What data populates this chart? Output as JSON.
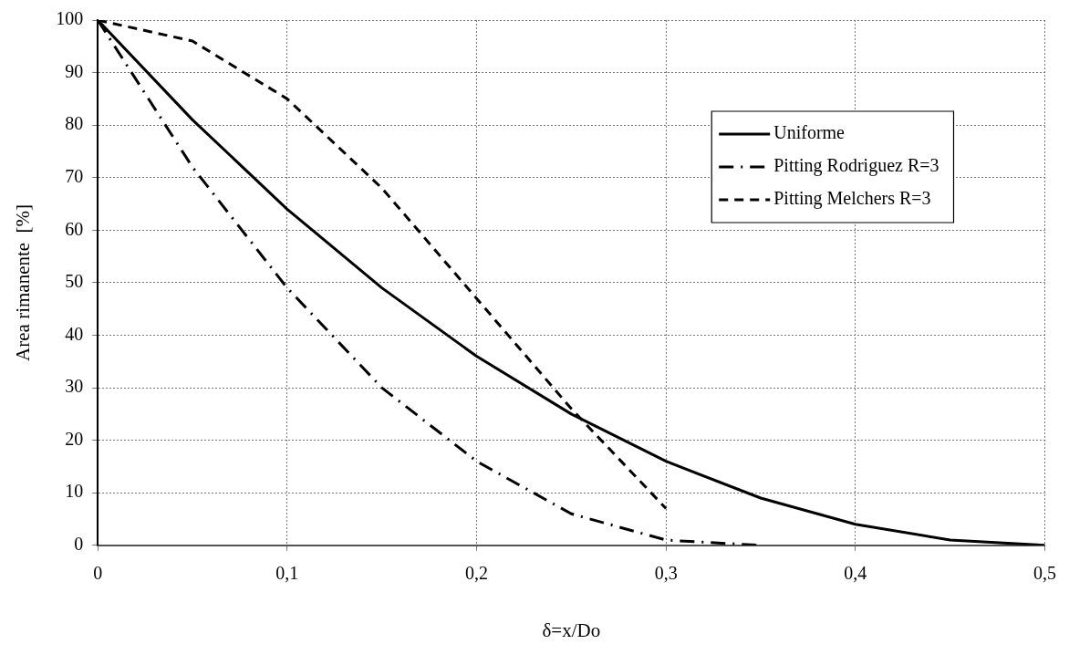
{
  "chart_data": {
    "type": "line",
    "xlabel": "δ=x/Do",
    "ylabel": "Area rimanente  [%]",
    "xlim": [
      0,
      0.5
    ],
    "xticks": [
      0,
      {
        "value": 0.1,
        "label": "0,1"
      },
      {
        "value": 0.2,
        "label": "0,2"
      },
      {
        "value": 0.3,
        "label": "0,3"
      },
      {
        "value": 0.4,
        "label": "0,4"
      },
      {
        "value": 0.5,
        "label": "0,5"
      }
    ],
    "ylim": [
      0,
      100
    ],
    "yticks": [
      0,
      10,
      20,
      30,
      40,
      50,
      60,
      70,
      80,
      90,
      100
    ],
    "grid": true,
    "legend": "top right",
    "marker": "none",
    "series": [
      {
        "name": "Uniforme",
        "color": "#000000",
        "line_style": "solid",
        "x": [
          0,
          0.05,
          0.1,
          0.15,
          0.2,
          0.25,
          0.3,
          0.35,
          0.4,
          0.45,
          0.5
        ],
        "values": [
          100,
          81,
          64,
          49,
          36,
          25,
          16,
          9,
          4,
          1,
          0
        ]
      },
      {
        "name": "Pitting Rodriguez R=3",
        "color": "#000000",
        "line_style": "dashdot",
        "x": [
          0,
          0.05,
          0.1,
          0.15,
          0.2,
          0.25,
          0.3,
          0.35
        ],
        "values": [
          100,
          72,
          49,
          30,
          16,
          6,
          1,
          0
        ]
      },
      {
        "name": "Pitting Melchers R=3",
        "color": "#000000",
        "line_style": "dashed",
        "x": [
          0,
          0.05,
          0.1,
          0.15,
          0.2,
          0.25,
          0.3
        ],
        "values": [
          100,
          96,
          85,
          68,
          47,
          26,
          7
        ]
      }
    ]
  }
}
